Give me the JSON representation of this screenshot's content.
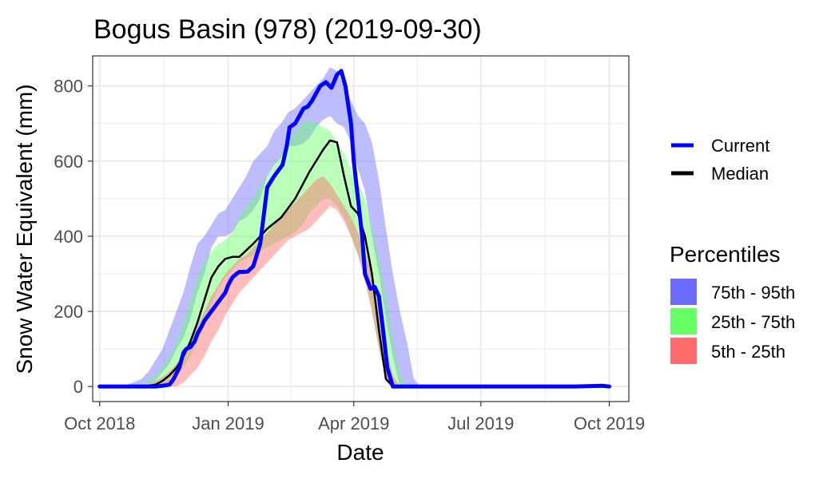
{
  "chart_data": {
    "type": "line",
    "title": "Bogus Basin (978) (2019-09-30)",
    "xlabel": "Date",
    "ylabel": "Snow Water Equivalent (mm)",
    "x_ticks": [
      "Oct 2018",
      "Jan 2019",
      "Apr 2019",
      "Jul 2019",
      "Oct 2019"
    ],
    "y_ticks": [
      0,
      200,
      400,
      600,
      800
    ],
    "xlim_days": [
      -5,
      379
    ],
    "ylim": [
      -40,
      880
    ],
    "grid": true,
    "legend_position": "right",
    "series": [
      {
        "name": "Current",
        "color": "#0000ff",
        "x_days": [
          0,
          10,
          20,
          30,
          40,
          45,
          50,
          53,
          57,
          60,
          62,
          65,
          68,
          70,
          73,
          75,
          78,
          80,
          85,
          90,
          92,
          95,
          98,
          100,
          103,
          106,
          110,
          115,
          118,
          120,
          125,
          128,
          131,
          134,
          136,
          140,
          143,
          146,
          149,
          152,
          155,
          158,
          162,
          166,
          170,
          173,
          176,
          180,
          182,
          185,
          188,
          190,
          194,
          197,
          200,
          203,
          206,
          210,
          214,
          218,
          222,
          226,
          228,
          230,
          233,
          236,
          238,
          240,
          245,
          252,
          260,
          280,
          300,
          320,
          340,
          360,
          365
        ],
        "values": [
          0,
          0,
          0,
          0,
          0,
          2,
          5,
          20,
          50,
          90,
          100,
          105,
          120,
          140,
          160,
          175,
          190,
          200,
          225,
          250,
          270,
          290,
          300,
          305,
          305,
          306,
          320,
          380,
          470,
          530,
          560,
          575,
          590,
          640,
          690,
          700,
          720,
          740,
          745,
          760,
          780,
          800,
          810,
          795,
          830,
          840,
          800,
          700,
          600,
          500,
          400,
          300,
          260,
          265,
          240,
          150,
          50,
          0,
          0,
          0,
          0,
          0,
          0,
          0,
          0,
          0,
          0,
          0,
          0,
          0,
          0,
          0,
          0,
          0,
          0,
          2,
          0
        ]
      },
      {
        "name": "Median",
        "color": "#000000",
        "x_days": [
          0,
          30,
          40,
          45,
          50,
          55,
          60,
          65,
          70,
          75,
          80,
          85,
          90,
          95,
          100,
          110,
          115,
          120,
          130,
          140,
          150,
          160,
          165,
          170,
          175,
          180,
          185,
          190,
          195,
          200,
          205,
          210,
          215,
          218,
          225,
          240,
          260,
          280,
          300,
          320,
          340,
          365
        ],
        "values": [
          0,
          0,
          5,
          15,
          30,
          50,
          80,
          120,
          170,
          230,
          290,
          320,
          340,
          345,
          345,
          380,
          400,
          420,
          450,
          500,
          570,
          630,
          655,
          650,
          560,
          480,
          460,
          400,
          300,
          150,
          20,
          0,
          0,
          0,
          0,
          0,
          0,
          0,
          0,
          0,
          0,
          0
        ]
      }
    ],
    "percentile_bands": {
      "title": "Percentiles",
      "x_days": [
        0,
        20,
        30,
        35,
        40,
        45,
        50,
        55,
        60,
        65,
        70,
        75,
        80,
        85,
        90,
        95,
        100,
        105,
        110,
        115,
        120,
        125,
        130,
        135,
        140,
        145,
        150,
        155,
        160,
        165,
        170,
        175,
        180,
        185,
        190,
        195,
        200,
        205,
        210,
        215,
        220,
        225,
        230,
        235,
        240
      ],
      "bands": [
        {
          "name": "75th - 95th",
          "color": "#6b6bff",
          "lower": [
            0,
            0,
            0,
            5,
            15,
            40,
            60,
            100,
            130,
            180,
            250,
            300,
            370,
            400,
            400,
            410,
            440,
            450,
            470,
            500,
            560,
            590,
            610,
            640,
            640,
            645,
            660,
            690,
            710,
            720,
            700,
            690,
            650,
            580,
            520,
            400,
            300,
            180,
            80,
            0,
            0,
            0,
            0,
            0,
            0
          ],
          "upper": [
            0,
            5,
            20,
            40,
            70,
            100,
            150,
            200,
            250,
            320,
            380,
            400,
            430,
            460,
            470,
            500,
            530,
            560,
            600,
            620,
            640,
            680,
            700,
            730,
            740,
            760,
            780,
            800,
            820,
            850,
            840,
            800,
            760,
            720,
            700,
            650,
            550,
            420,
            300,
            200,
            120,
            20,
            0,
            0,
            0
          ]
        },
        {
          "name": "25th - 75th",
          "color": "#66ff66",
          "lower": [
            0,
            0,
            0,
            0,
            0,
            5,
            10,
            25,
            50,
            80,
            120,
            170,
            220,
            260,
            290,
            310,
            330,
            340,
            350,
            360,
            370,
            380,
            390,
            400,
            410,
            430,
            460,
            480,
            500,
            500,
            480,
            450,
            400,
            350,
            300,
            200,
            100,
            20,
            0,
            0,
            0,
            0,
            0,
            0,
            0
          ],
          "upper": [
            0,
            0,
            5,
            15,
            30,
            50,
            80,
            120,
            170,
            230,
            290,
            330,
            360,
            380,
            390,
            410,
            450,
            480,
            500,
            530,
            560,
            590,
            620,
            650,
            680,
            700,
            710,
            700,
            690,
            680,
            650,
            620,
            580,
            540,
            500,
            420,
            340,
            240,
            120,
            30,
            0,
            0,
            0,
            0,
            0
          ]
        },
        {
          "name": "5th - 25th",
          "color": "#ff6b6b",
          "lower": [
            0,
            0,
            0,
            0,
            0,
            0,
            0,
            0,
            10,
            30,
            50,
            80,
            120,
            150,
            190,
            220,
            250,
            270,
            290,
            310,
            330,
            350,
            370,
            390,
            400,
            410,
            420,
            440,
            460,
            480,
            470,
            440,
            400,
            350,
            280,
            200,
            100,
            20,
            0,
            0,
            0,
            0,
            0,
            0,
            0
          ],
          "upper": [
            0,
            0,
            0,
            5,
            15,
            25,
            40,
            60,
            90,
            120,
            160,
            200,
            240,
            270,
            300,
            320,
            340,
            350,
            370,
            390,
            410,
            430,
            450,
            470,
            490,
            510,
            530,
            550,
            560,
            540,
            510,
            480,
            450,
            410,
            360,
            300,
            200,
            100,
            30,
            0,
            0,
            0,
            0,
            0,
            0
          ]
        }
      ]
    }
  }
}
